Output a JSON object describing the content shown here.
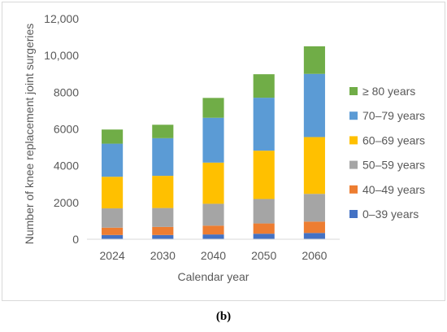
{
  "caption": "(b)",
  "chart_data": {
    "type": "bar",
    "stacked": true,
    "categories": [
      "2024",
      "2030",
      "2040",
      "2050",
      "2060"
    ],
    "series": [
      {
        "name": "0–39 years",
        "color": "#4472c4",
        "values": [
          230,
          230,
          260,
          300,
          340
        ]
      },
      {
        "name": "40–49 years",
        "color": "#ed7d31",
        "values": [
          400,
          440,
          480,
          560,
          620
        ]
      },
      {
        "name": "50–59 years",
        "color": "#a5a5a5",
        "values": [
          1050,
          1030,
          1190,
          1330,
          1510
        ]
      },
      {
        "name": "60–69 years",
        "color": "#ffc000",
        "values": [
          1720,
          1750,
          2240,
          2630,
          3090
        ]
      },
      {
        "name": "70–79 years",
        "color": "#5b9bd5",
        "values": [
          1800,
          2050,
          2440,
          2880,
          3440
        ]
      },
      {
        "name": "≥ 80 years",
        "color": "#70ad47",
        "values": [
          770,
          730,
          1080,
          1280,
          1500
        ]
      }
    ],
    "xlabel": "Calendar year",
    "ylabel": "Number of knee replacement joint surgeries",
    "ylim": [
      0,
      12000
    ],
    "yticks": [
      "0",
      "2000",
      "4000",
      "6000",
      "8000",
      "10,000",
      "12,000"
    ],
    "grid": false,
    "legend": "right"
  }
}
